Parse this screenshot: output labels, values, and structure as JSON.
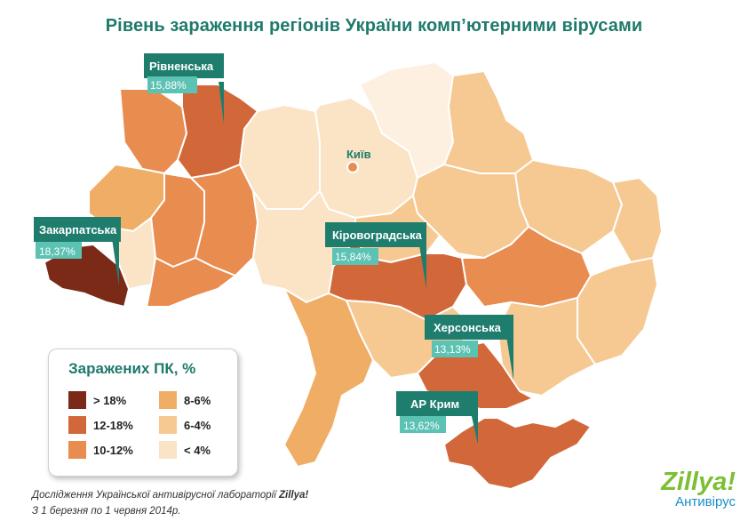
{
  "title": "Рівень зараження регіонів України комп’ютерними вірусами",
  "capital": {
    "name": "Київ"
  },
  "callouts": [
    {
      "name": "Рівненська",
      "value": "15,88%"
    },
    {
      "name": "Закарпатська",
      "value": "18,37%"
    },
    {
      "name": "Кіровоградська",
      "value": "15,84%"
    },
    {
      "name": "Херсонська",
      "value": "13,13%"
    },
    {
      "name": "АР Крим",
      "value": "13,62%"
    }
  ],
  "legend": {
    "title": "Заражених ПК, %",
    "items": [
      {
        "label": "> 18%",
        "color": "#7b2a17"
      },
      {
        "label": "12-18%",
        "color": "#d2683a"
      },
      {
        "label": "10-12%",
        "color": "#e98c50"
      },
      {
        "label": "8-6%",
        "color": "#f0ad66"
      },
      {
        "label": "6-4%",
        "color": "#f6c993"
      },
      {
        "label": "< 4%",
        "color": "#fbe3c6"
      }
    ]
  },
  "footer": {
    "line1_prefix": "Дослідження Української антивірусної лабораторії ",
    "line1_brand": "Zillya!",
    "line2": "З 1 березня по 1 червня 2014р."
  },
  "logo": {
    "word": "Zillya!",
    "sub": "Антивірус"
  }
}
